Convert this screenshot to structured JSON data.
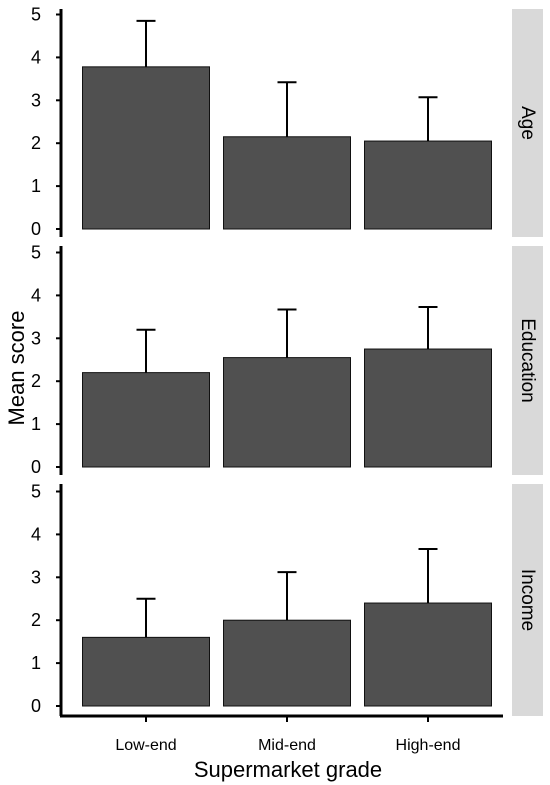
{
  "chart_data": {
    "type": "bar",
    "xlabel": "Supermarket grade",
    "ylabel": "Mean score",
    "categories": [
      "Low-end",
      "Mid-end",
      "High-end"
    ],
    "ylim": [
      0,
      5
    ],
    "yticks": [
      0,
      1,
      2,
      3,
      4,
      5
    ],
    "grid": false,
    "legend": "none",
    "error_bars": "upper only",
    "colors": {
      "bar": "#505050",
      "strip": "#d9d9d9"
    },
    "panels": [
      {
        "strip_label": "Age",
        "values": [
          3.78,
          2.15,
          2.05
        ],
        "errors": [
          1.07,
          1.27,
          1.02
        ]
      },
      {
        "strip_label": "Education",
        "values": [
          2.2,
          2.55,
          2.75
        ],
        "errors": [
          1.0,
          1.12,
          0.98
        ]
      },
      {
        "strip_label": "Income",
        "values": [
          1.6,
          2.0,
          2.4
        ],
        "errors": [
          0.9,
          1.12,
          1.26
        ]
      }
    ]
  }
}
